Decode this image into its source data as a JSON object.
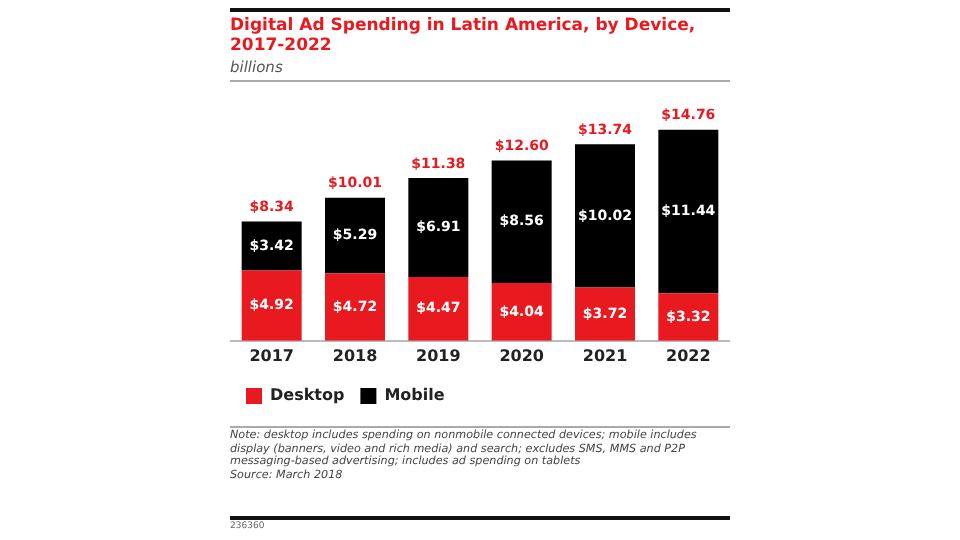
{
  "chart_data": {
    "type": "bar",
    "title": "Digital Ad Spending in Latin America, by Device, 2017-2022",
    "subtitle": "billions",
    "categories": [
      "2017",
      "2018",
      "2019",
      "2020",
      "2021",
      "2022"
    ],
    "stacked": true,
    "legend": "bottom left",
    "grid": false,
    "series": [
      {
        "name": "Desktop",
        "color": "#e8191f",
        "values": [
          4.92,
          4.72,
          4.47,
          4.04,
          3.72,
          3.32
        ],
        "value_labels": [
          "$4.92",
          "$4.72",
          "$4.47",
          "$4.04",
          "$3.72",
          "$3.32"
        ]
      },
      {
        "name": "Mobile",
        "color": "#000000",
        "values": [
          3.42,
          5.29,
          6.91,
          8.56,
          10.02,
          11.44
        ],
        "value_labels": [
          "$3.42",
          "$5.29",
          "$6.91",
          "$8.56",
          "$10.02",
          "$11.44"
        ]
      }
    ],
    "totals": [
      "$8.34",
      "$10.01",
      "$11.38",
      "$12.60",
      "$13.74",
      "$14.76"
    ],
    "annotations": [
      "Note: desktop includes spending on nonmobile connected devices; mobile includes display (banners, video and rich media) and search; excludes SMS, MMS and P2P messaging-based advertising; includes ad spending on tablets",
      "Source: March 2018",
      "236360"
    ]
  }
}
